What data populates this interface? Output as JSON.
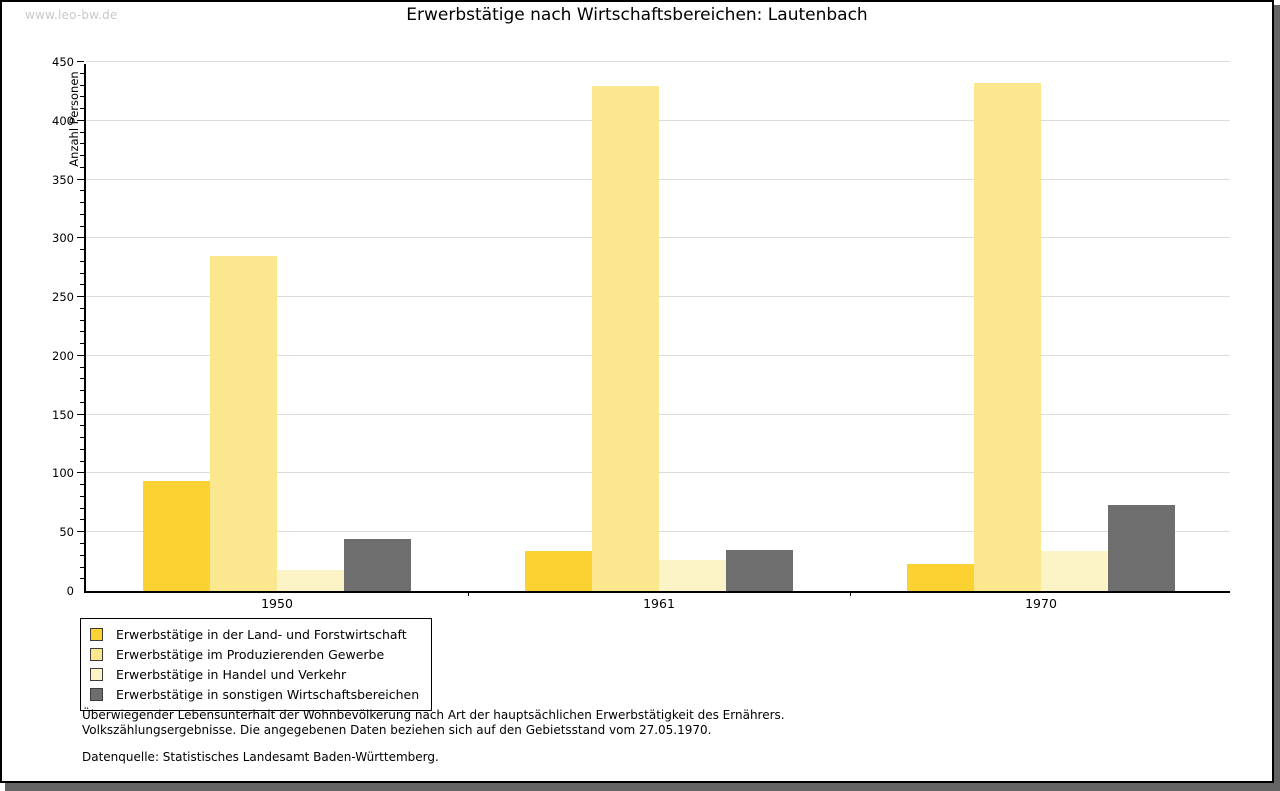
{
  "watermark": "www.leo-bw.de",
  "title": "Erwerbstätige nach Wirtschaftsbereichen: Lautenbach",
  "chart_data": {
    "type": "bar",
    "title": "Erwerbstätige nach Wirtschaftsbereichen: Lautenbach",
    "xlabel": "",
    "ylabel": "Anzahl Personen",
    "categories": [
      "1950",
      "1961",
      "1970"
    ],
    "series": [
      {
        "name": "Erwerbstätige in der Land- und Forstwirtschaft",
        "color": "#FBD231",
        "values": [
          94,
          34,
          23
        ]
      },
      {
        "name": "Erwerbstätige im Produzierenden Gewerbe",
        "color": "#FBE88E",
        "values": [
          285,
          430,
          432
        ]
      },
      {
        "name": "Erwerbstätige in Handel und Verkehr",
        "color": "#FCF4C7",
        "values": [
          18,
          26,
          34
        ]
      },
      {
        "name": "Erwerbstätige in sonstigen Wirtschaftsbereichen",
        "color": "#6E6E6E",
        "values": [
          44,
          35,
          73
        ]
      }
    ],
    "ylim": [
      0,
      450
    ],
    "y_major_step": 50,
    "y_minor_step": 10,
    "grid": true,
    "legend_position": "bottom-left"
  },
  "footer": {
    "line1": "Überwiegender Lebensunterhalt der Wohnbevölkerung nach Art der hauptsächlichen Erwerbstätigkeit des Ernährers.",
    "line2": "Volkszählungsergebnisse. Die angegebenen Daten beziehen sich auf den Gebietsstand vom 27.05.1970.",
    "source": "Datenquelle: Statistisches Landesamt Baden-Württemberg."
  },
  "style_colors": {
    "gridline": "#DCDCDC",
    "axis": "#000000",
    "shadow": "#646464",
    "watermark_text": "#C9C9C9"
  }
}
